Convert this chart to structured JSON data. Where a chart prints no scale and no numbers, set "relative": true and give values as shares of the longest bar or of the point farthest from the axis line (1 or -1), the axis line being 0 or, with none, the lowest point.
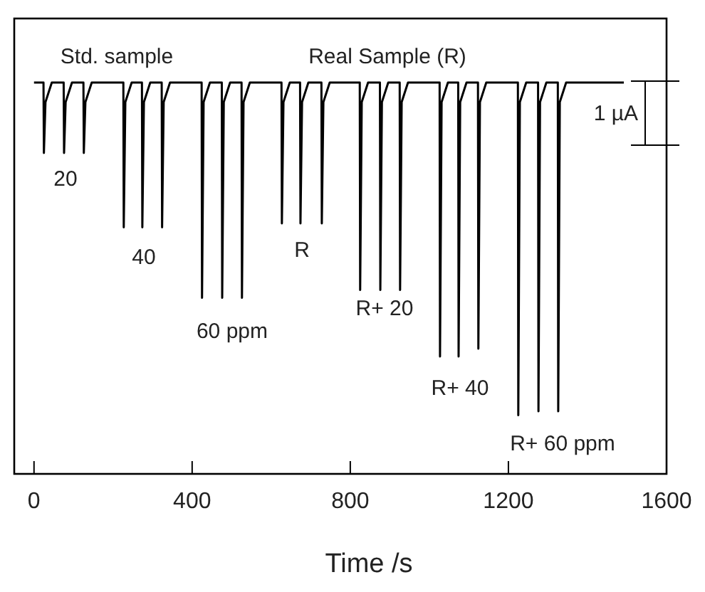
{
  "chart_data": {
    "type": "line",
    "relative": true,
    "xlabel": "Time /s",
    "xlim": [
      -50,
      1600
    ],
    "xticks": [
      0,
      400,
      800,
      1200,
      1600
    ],
    "series": [
      {
        "color": "#000000",
        "x": [
          0,
          24,
          25,
          29,
          45,
          75,
          76,
          80,
          96,
          125,
          126,
          130,
          146,
          226,
          227,
          231,
          247,
          273,
          274,
          278,
          294,
          323,
          324,
          328,
          344,
          424,
          425,
          429,
          445,
          475,
          476,
          480,
          496,
          525,
          526,
          530,
          546,
          626,
          627,
          631,
          647,
          673,
          674,
          678,
          694,
          727,
          728,
          732,
          748,
          824,
          825,
          829,
          845,
          875,
          876,
          880,
          896,
          925,
          926,
          930,
          946,
          1026,
          1027,
          1031,
          1047,
          1073,
          1074,
          1078,
          1094,
          1123,
          1124,
          1128,
          1144,
          1224,
          1225,
          1229,
          1245,
          1275,
          1276,
          1280,
          1296,
          1325,
          1326,
          1330,
          1346,
          1492
        ],
        "values": [
          1,
          1,
          0.82,
          0.95,
          1,
          1,
          0.82,
          0.95,
          1,
          1,
          0.82,
          0.95,
          1,
          1,
          0.63,
          0.95,
          1,
          1,
          0.63,
          0.95,
          1,
          1,
          0.63,
          0.95,
          1,
          1,
          0.45,
          0.95,
          1,
          1,
          0.45,
          0.95,
          1,
          1,
          0.45,
          0.95,
          1,
          1,
          0.64,
          0.95,
          1,
          1,
          0.64,
          0.95,
          1,
          1,
          0.64,
          0.95,
          1,
          1,
          0.47,
          0.95,
          1,
          1,
          0.47,
          0.95,
          1,
          1,
          0.47,
          0.95,
          1,
          1,
          0.3,
          0.95,
          1,
          1,
          0.3,
          0.95,
          1,
          1,
          0.32,
          0.95,
          1,
          1,
          0.15,
          0.95,
          1,
          1,
          0.16,
          0.95,
          1,
          1,
          0.16,
          0.95,
          1,
          1
        ]
      }
    ],
    "annotations": [
      "Std. sample",
      "Real Sample (R)",
      "20",
      "40",
      "60 ppm",
      "R",
      "R+ 20",
      "R+ 40",
      "R+ 60 ppm",
      "1 µA"
    ]
  }
}
